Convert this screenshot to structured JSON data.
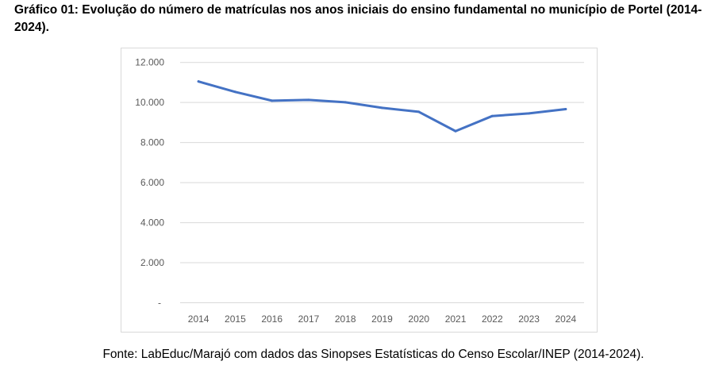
{
  "title": "Gráfico 01: Evolução do número de matrículas nos anos iniciais do ensino fundamental no município de Portel (2014-2024).",
  "source": "Fonte: LabEduc/Marajó com dados das Sinopses Estatísticas do Censo Escolar/INEP (2014-2024).",
  "chart_data": {
    "type": "line",
    "categories": [
      "2014",
      "2015",
      "2016",
      "2017",
      "2018",
      "2019",
      "2020",
      "2021",
      "2022",
      "2023",
      "2024"
    ],
    "values": [
      11050,
      10530,
      10090,
      10130,
      10010,
      9735,
      9535,
      8570,
      9325,
      9455,
      9670
    ],
    "ylim": [
      0,
      12000
    ],
    "yticks": [
      0,
      2000,
      4000,
      6000,
      8000,
      10000,
      12000
    ],
    "ytick_labels": [
      "-",
      "2.000",
      "4.000",
      "6.000",
      "8.000",
      "10.000",
      "12.000"
    ],
    "grid": true,
    "line_color": "#4472c4",
    "legend": "none"
  }
}
